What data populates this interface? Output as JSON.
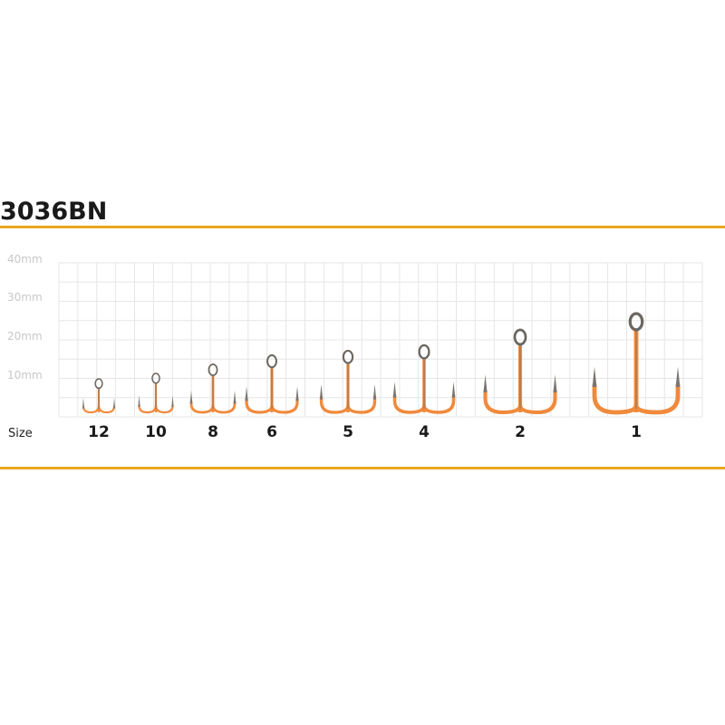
{
  "title": "3036BN",
  "scale_labels": [
    "40mm",
    "30mm",
    "20mm",
    "10mm"
  ],
  "size_label": "Size",
  "sizes": [
    "12",
    "10",
    "8",
    "6",
    "5",
    "4",
    "2",
    "1"
  ]
}
